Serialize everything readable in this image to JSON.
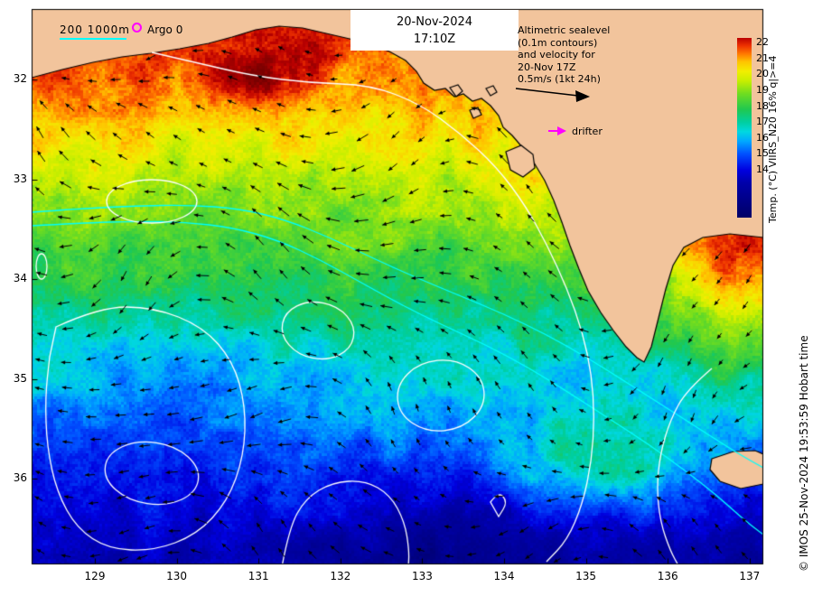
{
  "title": {
    "date": "20-Nov-2024",
    "time": "17:10Z"
  },
  "legend": {
    "bathy_label": "200 1000m",
    "argo_label": "Argo 0",
    "drifter_label": "drifter"
  },
  "info_box": {
    "lines": [
      "Altimetric sealevel",
      "(0.1m contours)",
      "and velocity for",
      "20-Nov 17Z",
      "0.5m/s (1kt 24h)"
    ]
  },
  "colorbar": {
    "title": "Temp. (°C) VIIRS_N20 16% q|>=4",
    "tick_labels": [
      "22",
      "21",
      "20",
      "19",
      "18",
      "17",
      "16",
      "15",
      "14"
    ],
    "stops": [
      [
        11,
        "#000066"
      ],
      [
        13.2,
        "#0000aa"
      ],
      [
        14,
        "#0000e0"
      ],
      [
        15,
        "#0050ff"
      ],
      [
        15.8,
        "#00a8ff"
      ],
      [
        16.4,
        "#00d8e0"
      ],
      [
        17,
        "#00cfa0"
      ],
      [
        17.8,
        "#20c850"
      ],
      [
        18.8,
        "#70dd20"
      ],
      [
        19.6,
        "#c8ee00"
      ],
      [
        20.2,
        "#f2ee00"
      ],
      [
        20.8,
        "#ffc400"
      ],
      [
        21.3,
        "#ff7800"
      ],
      [
        21.8,
        "#ee3200"
      ],
      [
        22.3,
        "#bb0000"
      ],
      [
        23,
        "#7a0000"
      ]
    ]
  },
  "axes": {
    "x_tick_labels": [
      "129",
      "130",
      "131",
      "132",
      "133",
      "134",
      "135",
      "136",
      "137"
    ],
    "y_tick_labels": [
      "32",
      "33",
      "34",
      "35",
      "36"
    ]
  },
  "credit": "© IMOS 25-Nov-2024 19:53:59 Hobart time",
  "colors": {
    "land": "#f2c49c",
    "bathymetry_line": "#00ffff",
    "ssh_contour": "#ffffff",
    "velocity_vector": "#000000",
    "marker_magenta": "#ff00ff",
    "frame": "#000000",
    "background": "#ffffff"
  }
}
